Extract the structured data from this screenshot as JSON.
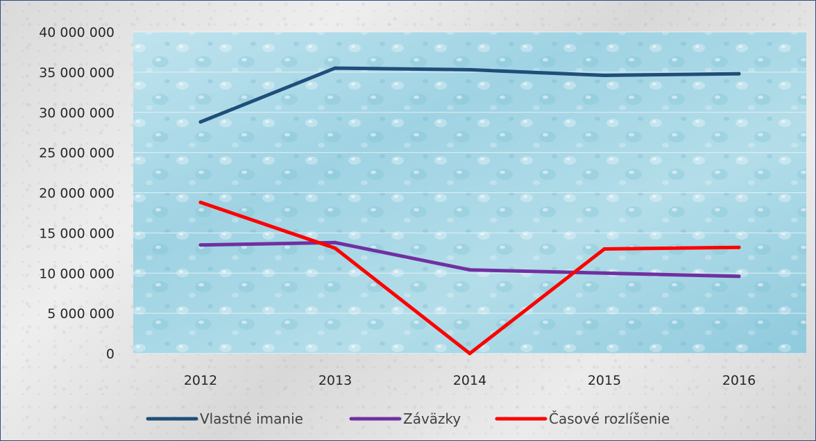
{
  "chart_data": {
    "type": "line",
    "title": "",
    "xlabel": "",
    "ylabel": "",
    "categories": [
      "2012",
      "2013",
      "2014",
      "2015",
      "2016"
    ],
    "ylim": [
      0,
      40000000
    ],
    "y_ticks": [
      "0",
      "5 000 000",
      "10 000 000",
      "15 000 000",
      "20 000 000",
      "25 000 000",
      "30 000 000",
      "35 000 000",
      "40 000 000"
    ],
    "grid": true,
    "legend_position": "bottom",
    "series": [
      {
        "name": "Vlastné imanie",
        "color": "#1f4e79",
        "values": [
          28800000,
          35500000,
          35300000,
          34600000,
          34800000
        ]
      },
      {
        "name": "Záväzky",
        "color": "#7030a0",
        "values": [
          13500000,
          13800000,
          10400000,
          10000000,
          9600000
        ]
      },
      {
        "name": "Časové rozlíšenie",
        "color": "#ff0000",
        "values": [
          18800000,
          13100000,
          0,
          13000000,
          13200000
        ]
      }
    ]
  }
}
